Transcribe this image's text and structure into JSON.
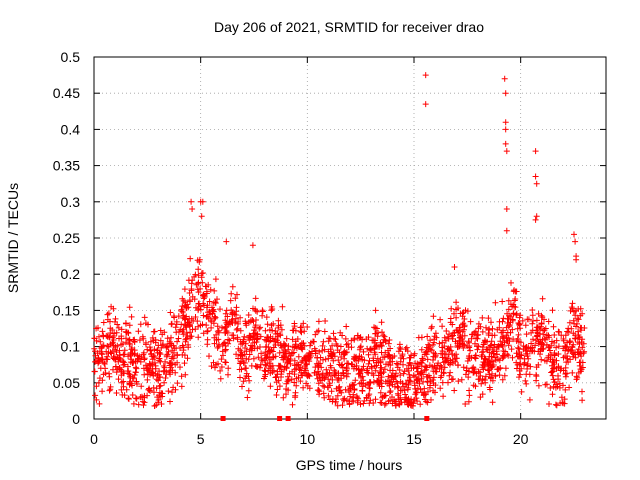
{
  "chart_data": {
    "type": "scatter",
    "title": "Day 206 of 2021, SRMTID for receiver drao",
    "xlabel": "GPS time / hours",
    "ylabel": "SRMTID / TECUs",
    "xlim": [
      0,
      24
    ],
    "ylim": [
      0,
      0.5
    ],
    "x_ticks": [
      "0",
      "5",
      "10",
      "15",
      "20"
    ],
    "x_tick_values": [
      0,
      5,
      10,
      15,
      20
    ],
    "y_ticks": [
      "0",
      "0.05",
      "0.1",
      "0.15",
      "0.2",
      "0.25",
      "0.3",
      "0.35",
      "0.4",
      "0.45",
      "0.5"
    ],
    "y_tick_values": [
      0,
      0.05,
      0.1,
      0.15,
      0.2,
      0.25,
      0.3,
      0.35,
      0.4,
      0.45,
      0.5
    ],
    "grid": true,
    "marker": "plus",
    "color": "#ff0000",
    "zero_markers_x": [
      6.05,
      8.7,
      9.1,
      15.6
    ],
    "notable_points": [
      {
        "x": 0.1,
        "y": 0.125
      },
      {
        "x": 0.8,
        "y": 0.155
      },
      {
        "x": 4.55,
        "y": 0.3
      },
      {
        "x": 4.6,
        "y": 0.29
      },
      {
        "x": 5.0,
        "y": 0.3
      },
      {
        "x": 5.1,
        "y": 0.3
      },
      {
        "x": 5.05,
        "y": 0.28
      },
      {
        "x": 6.2,
        "y": 0.245
      },
      {
        "x": 7.45,
        "y": 0.24
      },
      {
        "x": 13.2,
        "y": 0.15
      },
      {
        "x": 15.55,
        "y": 0.475
      },
      {
        "x": 15.55,
        "y": 0.435
      },
      {
        "x": 16.9,
        "y": 0.21
      },
      {
        "x": 19.25,
        "y": 0.47
      },
      {
        "x": 19.3,
        "y": 0.45
      },
      {
        "x": 19.3,
        "y": 0.41
      },
      {
        "x": 19.3,
        "y": 0.4
      },
      {
        "x": 19.3,
        "y": 0.38
      },
      {
        "x": 19.35,
        "y": 0.37
      },
      {
        "x": 19.35,
        "y": 0.29
      },
      {
        "x": 19.35,
        "y": 0.26
      },
      {
        "x": 20.7,
        "y": 0.37
      },
      {
        "x": 20.7,
        "y": 0.335
      },
      {
        "x": 20.75,
        "y": 0.325
      },
      {
        "x": 20.75,
        "y": 0.28
      },
      {
        "x": 20.7,
        "y": 0.275
      },
      {
        "x": 22.5,
        "y": 0.255
      },
      {
        "x": 22.55,
        "y": 0.245
      },
      {
        "x": 22.6,
        "y": 0.225
      },
      {
        "x": 22.6,
        "y": 0.22
      }
    ],
    "series_profile": [
      {
        "x": 0,
        "y": 0.08
      },
      {
        "x": 1,
        "y": 0.085
      },
      {
        "x": 2,
        "y": 0.08
      },
      {
        "x": 3,
        "y": 0.07
      },
      {
        "x": 4,
        "y": 0.1
      },
      {
        "x": 4.5,
        "y": 0.16
      },
      {
        "x": 5,
        "y": 0.17
      },
      {
        "x": 5.5,
        "y": 0.13
      },
      {
        "x": 6,
        "y": 0.1
      },
      {
        "x": 6.5,
        "y": 0.14
      },
      {
        "x": 7,
        "y": 0.08
      },
      {
        "x": 7.5,
        "y": 0.12
      },
      {
        "x": 8,
        "y": 0.1
      },
      {
        "x": 9,
        "y": 0.08
      },
      {
        "x": 10,
        "y": 0.075
      },
      {
        "x": 11,
        "y": 0.065
      },
      {
        "x": 12,
        "y": 0.06
      },
      {
        "x": 13,
        "y": 0.075
      },
      {
        "x": 14,
        "y": 0.055
      },
      {
        "x": 15,
        "y": 0.05
      },
      {
        "x": 16,
        "y": 0.075
      },
      {
        "x": 17,
        "y": 0.11
      },
      {
        "x": 18,
        "y": 0.08
      },
      {
        "x": 19,
        "y": 0.1
      },
      {
        "x": 19.7,
        "y": 0.15
      },
      {
        "x": 20,
        "y": 0.09
      },
      {
        "x": 20.5,
        "y": 0.1
      },
      {
        "x": 21,
        "y": 0.12
      },
      {
        "x": 21.5,
        "y": 0.08
      },
      {
        "x": 22,
        "y": 0.06
      },
      {
        "x": 22.5,
        "y": 0.12
      },
      {
        "x": 23,
        "y": 0.09
      }
    ],
    "data_extent_x": [
      0,
      23
    ]
  }
}
